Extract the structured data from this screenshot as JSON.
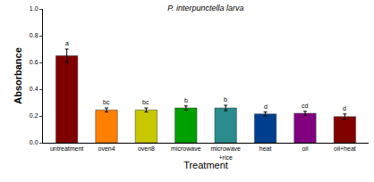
{
  "chart_data": {
    "type": "bar",
    "title": "P. interpunctella larva",
    "x_label": "Treatment",
    "y_label": "Absorbance",
    "categories": [
      "untreatment",
      "oven4",
      "oven8",
      "microwave",
      "microwave +rice",
      "heat",
      "oil",
      "oil+heat"
    ],
    "values": [
      0.65,
      0.245,
      0.245,
      0.26,
      0.26,
      0.215,
      0.22,
      0.195
    ],
    "errors": [
      0.05,
      0.015,
      0.015,
      0.015,
      0.02,
      0.015,
      0.015,
      0.02
    ],
    "annotations": [
      "a",
      "bc",
      "bc",
      "b",
      "b",
      "d",
      "cd",
      "d"
    ],
    "colors": [
      "#800000",
      "#ff8000",
      "#c8c800",
      "#009f00",
      "#2a8c8c",
      "#003f8f",
      "#800080",
      "#800000"
    ],
    "ylim": [
      0,
      1
    ],
    "yticks": [
      {
        "value": 0,
        "label": "0.0"
      },
      {
        "value": 0.2,
        "label": "0.2"
      },
      {
        "value": 0.4,
        "label": "0.4"
      },
      {
        "value": 0.6,
        "label": "0.6"
      },
      {
        "value": 0.8,
        "label": "0.8"
      },
      {
        "value": 1,
        "label": "1.0"
      }
    ],
    "grid": false
  }
}
